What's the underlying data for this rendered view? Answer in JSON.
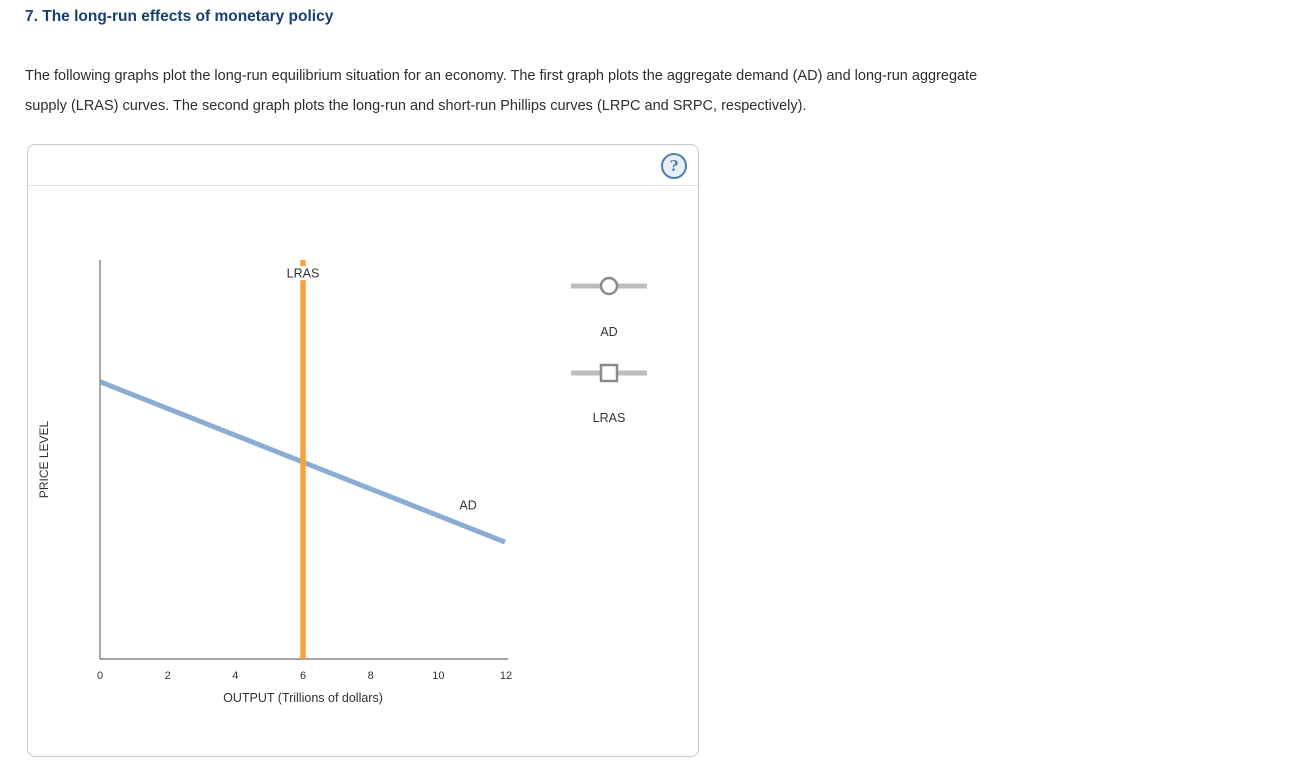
{
  "page": {
    "title": "7. The long-run effects of monetary policy",
    "intro_line1": "The following graphs plot the long-run equilibrium situation for an economy. The first graph plots the aggregate demand (AD) and long-run aggregate",
    "intro_line2": "supply (LRAS) curves. The second graph plots the long-run and short-run Phillips curves (LRPC and SRPC, respectively)."
  },
  "panel": {
    "help_icon_glyph": "?"
  },
  "colors": {
    "title_heading": "#17406E",
    "ad_curve": "#8BACD3",
    "lras_curve": "#F9A13C",
    "axis": "#6e6e6e",
    "help_icon": "#4C7FAE",
    "legend_line": "#bdbdbd",
    "legend_marker_stroke": "#8a8a8a"
  },
  "chart_data": {
    "type": "line",
    "title": "",
    "xlabel": "OUTPUT (Trillions of dollars)",
    "ylabel": "PRICE LEVEL",
    "xlim": [
      0,
      12
    ],
    "ylim": [
      0,
      10
    ],
    "xticks": [
      0,
      2,
      4,
      6,
      8,
      10,
      12
    ],
    "yticks": [],
    "grid": false,
    "legend_position": "right",
    "series": [
      {
        "name": "AD",
        "label": "AD",
        "color": "#8BACD3",
        "stroke_width": 5,
        "points": [
          [
            0,
            6.95
          ],
          [
            11.97,
            2.93
          ]
        ],
        "label_pos": [
          10.88,
          3.86
        ],
        "label_bg": false,
        "description": "Downward-sloping aggregate demand curve; crosses LRAS at output 6, mid price level"
      },
      {
        "name": "LRAS",
        "label": "LRAS",
        "color": "#F9A13C",
        "stroke_width": 5.5,
        "points": [
          [
            6,
            0
          ],
          [
            6,
            10
          ]
        ],
        "label_pos": [
          6,
          9.67
        ],
        "label_bg": true,
        "description": "Vertical long-run aggregate supply curve at output = 6 trillion dollars"
      }
    ],
    "legend": [
      {
        "label": "AD",
        "marker": "circle"
      },
      {
        "label": "LRAS",
        "marker": "square"
      }
    ]
  }
}
